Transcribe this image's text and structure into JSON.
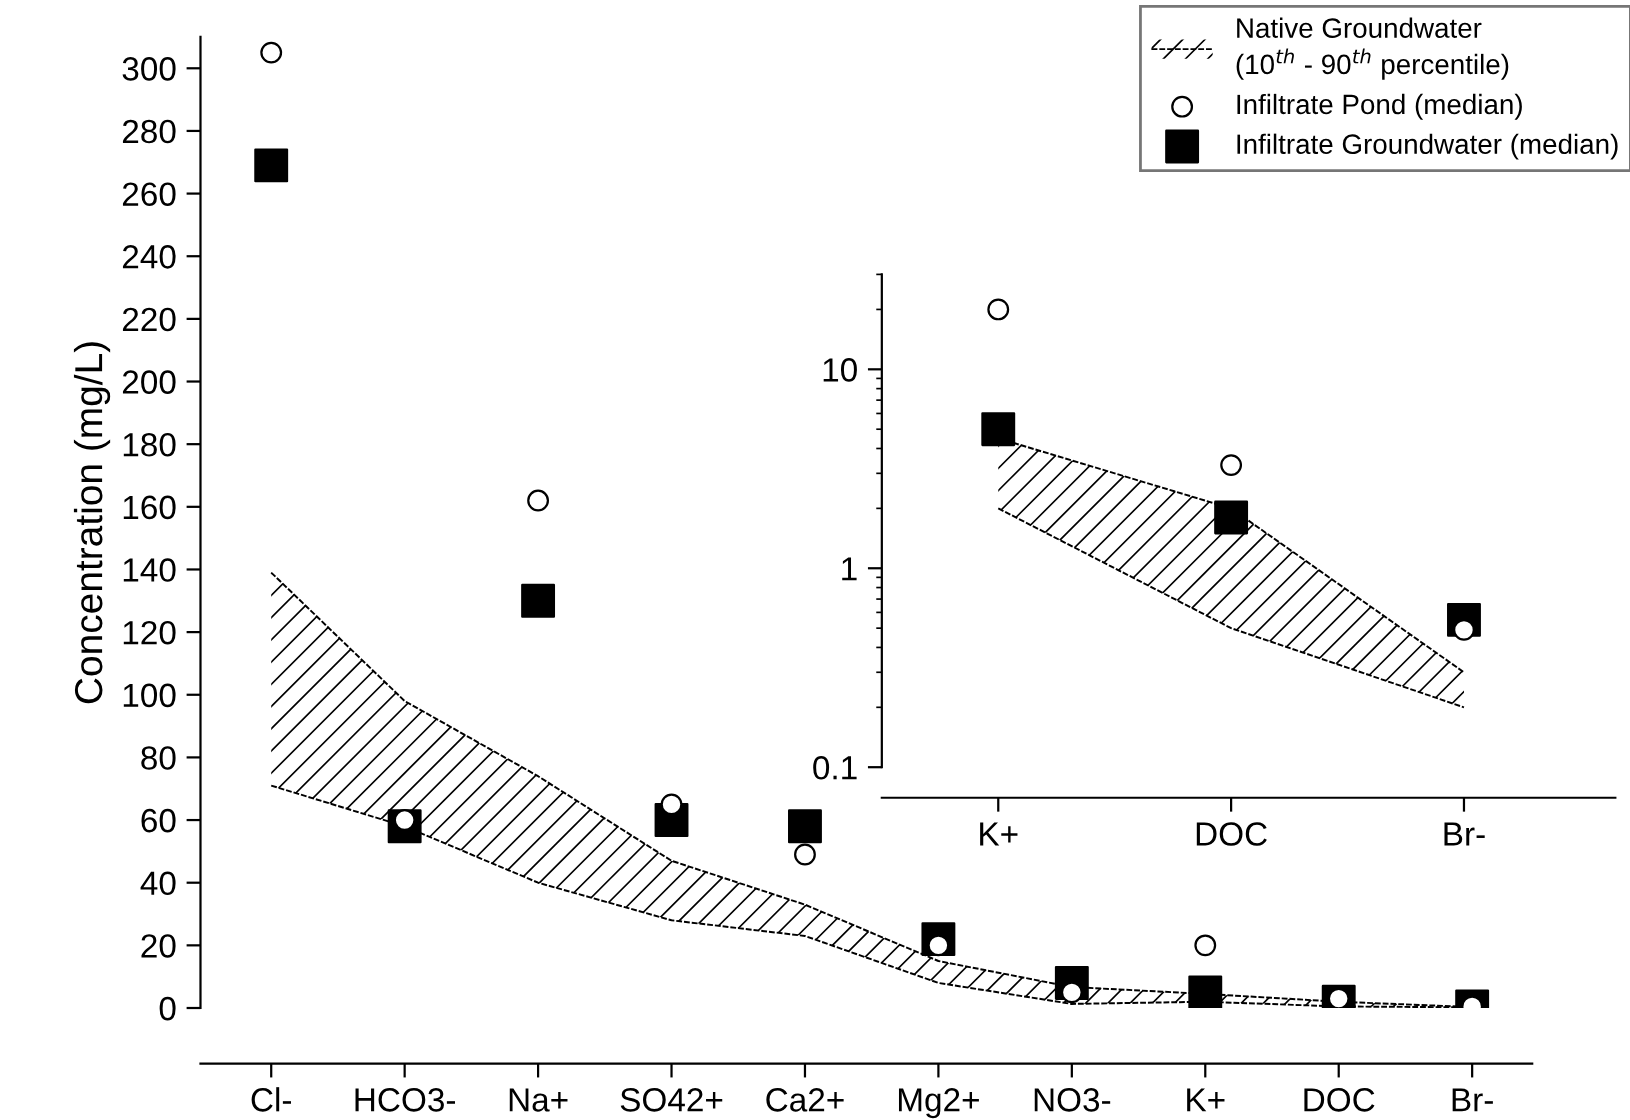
{
  "chart_data": [
    {
      "type": "scatter",
      "ylabel": "Concentration (mg/L)",
      "categories": [
        "Cl-",
        "HCO3-",
        "Na+",
        "SO42+",
        "Ca2+",
        "Mg2+",
        "NO3-",
        "K+",
        "DOC",
        "Br-"
      ],
      "ylim": [
        0,
        310
      ],
      "yticks": [
        0,
        20,
        40,
        60,
        80,
        100,
        120,
        140,
        160,
        180,
        200,
        220,
        240,
        260,
        280,
        300
      ],
      "legend": "top right",
      "grid": false,
      "series": [
        {
          "name": "Native Groundwater\n(10$^{th}$ - 90$^{th}$ percentile)",
          "type": "line",
          "line_style": "dashed",
          "color": "#000000",
          "values": [
            71,
            58,
            40,
            28,
            23,
            8,
            1.3,
            2,
            0.5,
            0.2
          ],
          "lower": [
            71,
            58,
            40,
            28,
            23,
            8,
            1.3,
            2,
            0.5,
            0.2
          ],
          "upper": [
            139,
            98,
            74,
            47,
            33,
            15,
            6.7,
            4.5,
            2,
            0.3
          ]
        },
        {
          "type": "line",
          "line_style": "dashed",
          "color": "#000000",
          "values": [
            139,
            98,
            74,
            47,
            33,
            15,
            6.7,
            4.5,
            2,
            0.3
          ]
        },
        {
          "name": "Infiltrate Pond (median)",
          "marker": "circle",
          "color": "#000000",
          "values": [
            305,
            60,
            162,
            65,
            49,
            20,
            5,
            20,
            3,
            0.5
          ]
        },
        {
          "name": "Infiltrate Groundwater (median)",
          "marker": "square",
          "color": "#000000",
          "values": [
            269,
            58,
            130,
            60,
            58,
            22,
            8,
            5,
            2,
            0.5
          ]
        }
      ]
    },
    {
      "type": "scatter",
      "categories": [
        "K+",
        "DOC",
        "Br-"
      ],
      "log": "y",
      "ylim": [
        0.1,
        30
      ],
      "yticks": [
        0.1,
        1,
        10
      ],
      "grid": false,
      "series": [
        {
          "type": "line",
          "line_style": "dashed",
          "color": "#000000",
          "values": [
            2,
            0.5,
            0.2
          ],
          "lower": [
            2,
            0.5,
            0.2
          ],
          "upper": [
            4.5,
            2,
            0.3
          ]
        },
        {
          "type": "line",
          "line_style": "dashed",
          "color": "#000000",
          "values": [
            4.5,
            2,
            0.3
          ]
        },
        {
          "marker": "circle",
          "color": "#000000",
          "values": [
            20,
            3.3,
            0.49
          ]
        },
        {
          "marker": "square",
          "color": "#000000",
          "values": [
            5,
            1.8,
            0.55
          ]
        }
      ]
    }
  ]
}
